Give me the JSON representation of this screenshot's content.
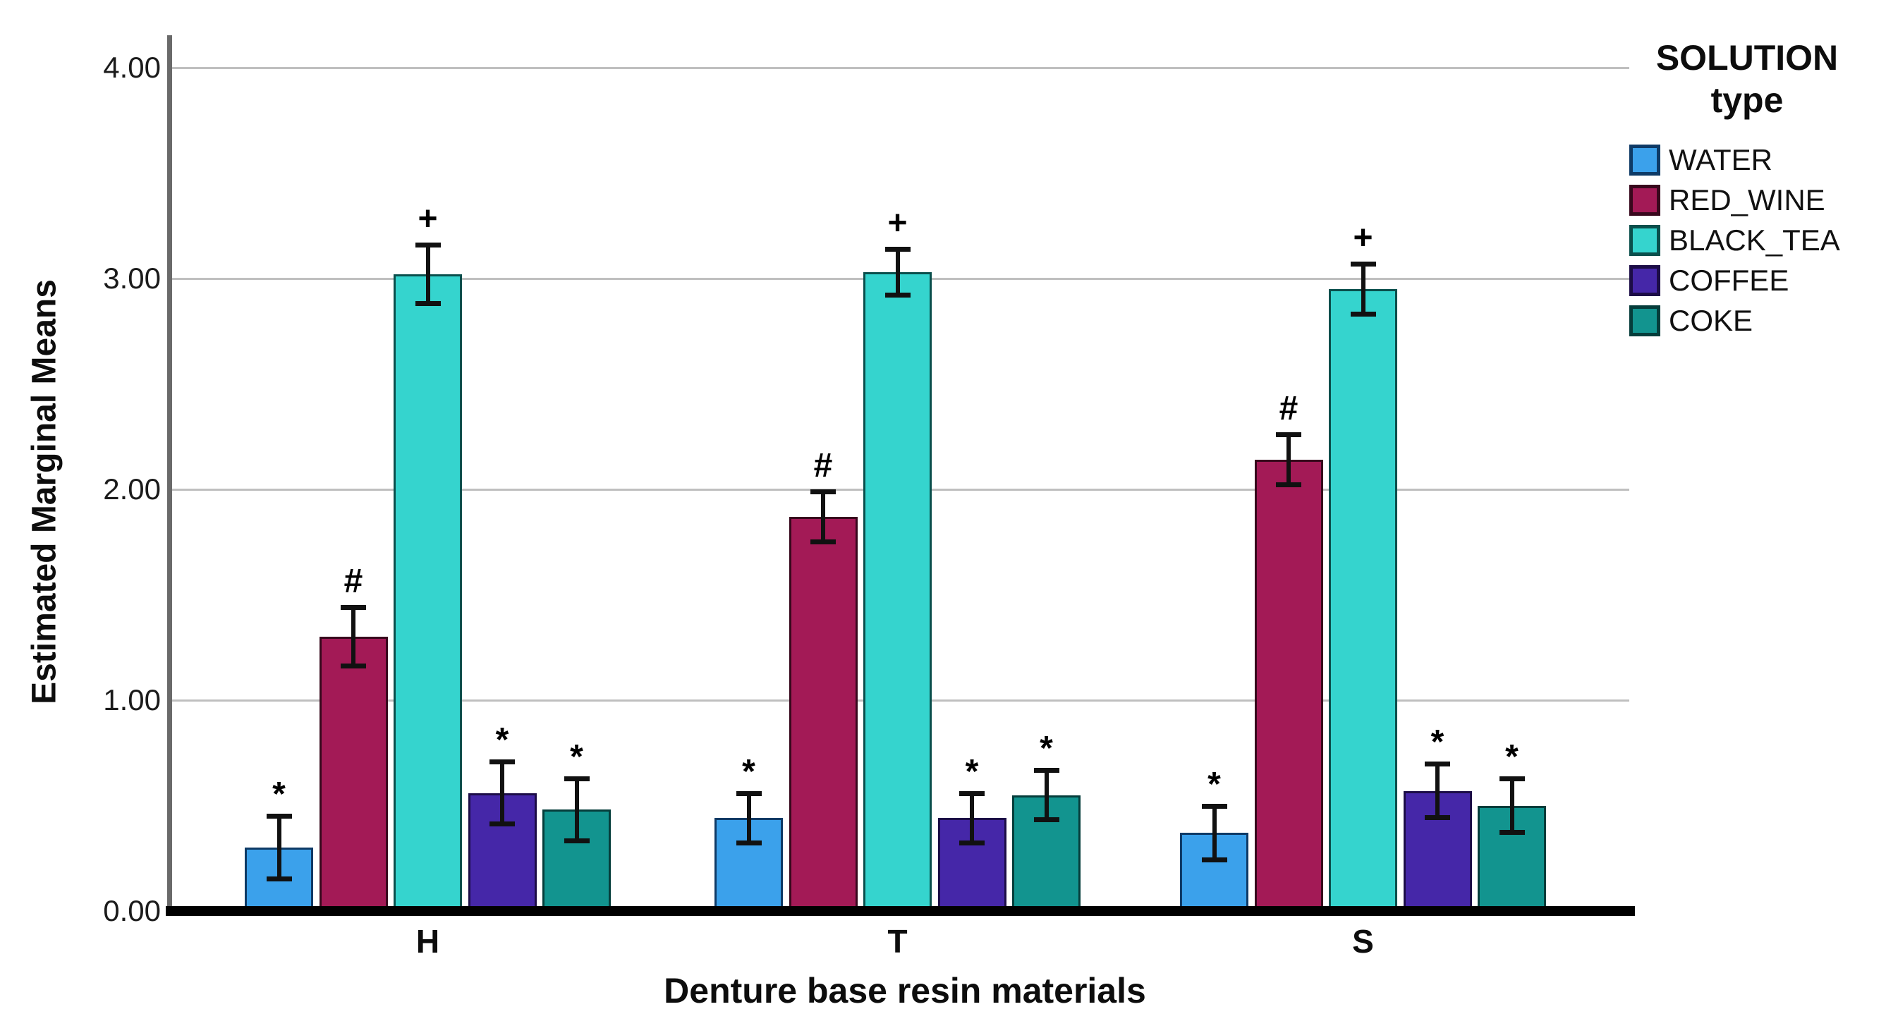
{
  "chart_data": {
    "type": "bar",
    "title": "",
    "xlabel": "Denture base resin materials",
    "ylabel": "Estimated Marginal Means",
    "categories": [
      "H",
      "T",
      "S"
    ],
    "series": [
      {
        "name": "WATER",
        "values": [
          0.3,
          0.44,
          0.37
        ],
        "errors": [
          0.15,
          0.12,
          0.13
        ],
        "marker": "*",
        "color": "#3BA1EB",
        "border": "#0E3A66"
      },
      {
        "name": "RED_WINE",
        "values": [
          1.3,
          1.87,
          2.14
        ],
        "errors": [
          0.14,
          0.12,
          0.12
        ],
        "marker": "#",
        "color": "#A31A56",
        "border": "#38081D"
      },
      {
        "name": "BLACK_TEA",
        "values": [
          3.02,
          3.03,
          2.95
        ],
        "errors": [
          0.14,
          0.11,
          0.12
        ],
        "marker": "+",
        "color": "#35D4CE",
        "border": "#0A4F4C"
      },
      {
        "name": "COFFEE",
        "values": [
          0.56,
          0.44,
          0.57
        ],
        "errors": [
          0.15,
          0.12,
          0.13
        ],
        "marker": "*",
        "color": "#4527A8",
        "border": "#1C0D47"
      },
      {
        "name": "COKE",
        "values": [
          0.48,
          0.55,
          0.5
        ],
        "errors": [
          0.15,
          0.12,
          0.13
        ],
        "marker": "*",
        "color": "#12948F",
        "border": "#053D3B"
      }
    ],
    "y_ticks": [
      "0.00",
      "1.00",
      "2.00",
      "3.00",
      "4.00"
    ],
    "ylim": [
      0,
      4
    ],
    "grid": true,
    "legend_position": "top-right",
    "legend_title_lines": [
      "SOLUTION",
      "type"
    ],
    "marker_color": "#000000",
    "error_bar_color": "#111111",
    "axis_line_color": "#6a6a6a",
    "gridline_color": "#bfbfbf",
    "baseline_color": "#000000"
  }
}
